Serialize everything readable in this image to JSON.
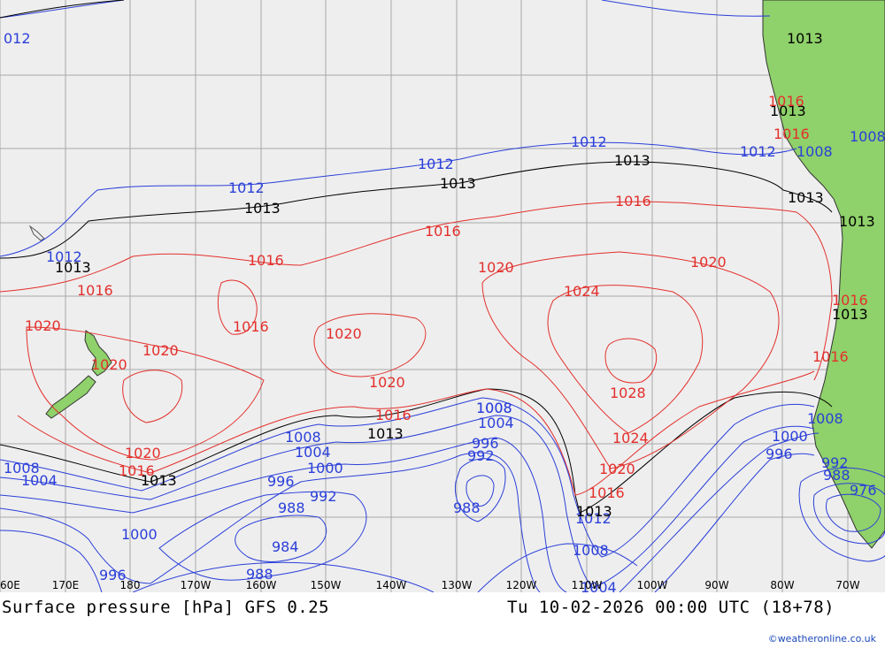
{
  "title": "Surface pressure [hPa] GFS 0.25",
  "valid_time": "Tu 10-02-2026 00:00 UTC (18+78)",
  "credit": "©weatheronline.co.uk",
  "longitude_ticks": [
    "60E",
    "170E",
    "180",
    "170W",
    "160W",
    "150W",
    "140W",
    "130W",
    "120W",
    "110W",
    "100W",
    "90W",
    "80W",
    "70W"
  ],
  "colors": {
    "background": "#eeeeee",
    "land": "#8fd16a",
    "grid": "#a8a8a8",
    "isobar_low": "#2b3fd9",
    "isobar_high": "#e3302c",
    "isobar_1013": "#000000"
  },
  "isobar_labels": {
    "blue": [
      "012",
      "1012",
      "1012",
      "1012",
      "1012",
      "1012",
      "1008",
      "1008",
      "1004",
      "1008",
      "1004",
      "1000",
      "996",
      "992",
      "988",
      "984",
      "988",
      "1000",
      "996",
      "1008",
      "1004",
      "996",
      "992",
      "988",
      "1012",
      "1008",
      "1004",
      "1008",
      "1000",
      "996",
      "992",
      "988",
      "976"
    ],
    "red": [
      "1016",
      "1016",
      "1016",
      "1016",
      "1016",
      "1020",
      "1016",
      "1020",
      "1020",
      "1020",
      "1020",
      "1020",
      "1016",
      "1020",
      "1020",
      "1024",
      "1028",
      "1024",
      "1020",
      "1016",
      "1016",
      "1016"
    ],
    "black": [
      "1013",
      "1013",
      "1013",
      "1013",
      "1013",
      "1013",
      "1013",
      "1013",
      "1013",
      "1013",
      "1013",
      "1013"
    ]
  },
  "land_labels": [
    "1016",
    "1016",
    "1008",
    "1008"
  ]
}
